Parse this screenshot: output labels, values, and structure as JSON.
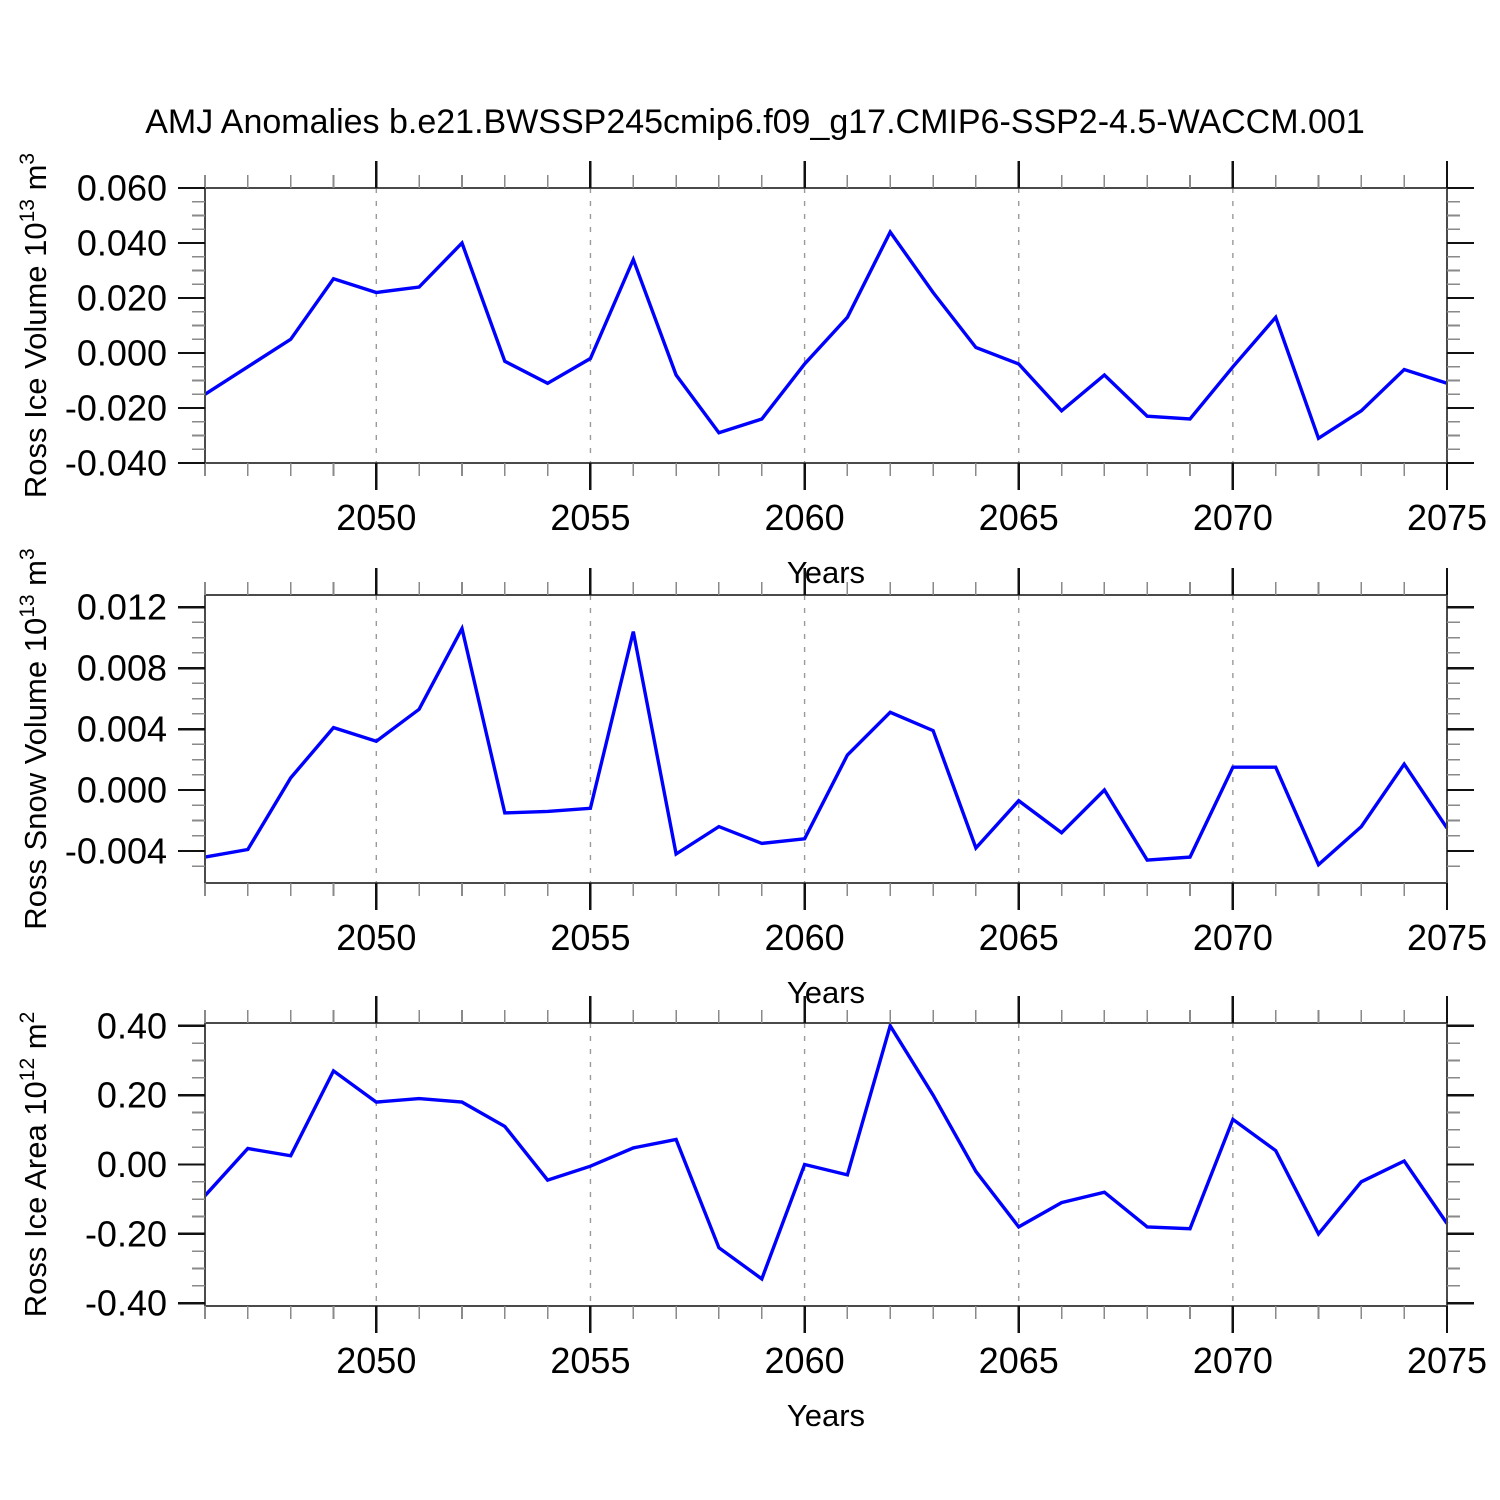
{
  "title": "AMJ Anomalies b.e21.BWSSP245cmip6.f09_g17.CMIP6-SSP2-4.5-WACCM.001",
  "line_color": "#0000ff",
  "grid_color": "#9a9a9a",
  "chart_data": [
    {
      "type": "line",
      "name": "ross-ice-volume",
      "ylabel_segments": [
        {
          "t": "Ross Ice Volume 10",
          "sup": false
        },
        {
          "t": "13",
          "sup": true
        },
        {
          "t": " m",
          "sup": false
        },
        {
          "t": "3",
          "sup": true
        }
      ],
      "xlabel": "Years",
      "x": [
        2046,
        2047,
        2048,
        2049,
        2050,
        2051,
        2052,
        2053,
        2054,
        2055,
        2056,
        2057,
        2058,
        2059,
        2060,
        2061,
        2062,
        2063,
        2064,
        2065,
        2066,
        2067,
        2068,
        2069,
        2070,
        2071,
        2072,
        2073,
        2074,
        2075
      ],
      "values": [
        -0.015,
        -0.005,
        0.005,
        0.027,
        0.022,
        0.024,
        0.04,
        -0.003,
        -0.011,
        -0.002,
        0.034,
        -0.008,
        -0.029,
        -0.024,
        -0.004,
        0.013,
        0.044,
        0.022,
        0.002,
        -0.004,
        -0.021,
        -0.008,
        -0.023,
        -0.024,
        -0.005,
        0.013,
        -0.031,
        -0.021,
        -0.006,
        -0.011
      ],
      "xlim": [
        2046,
        2075
      ],
      "ylim": [
        -0.04,
        0.06
      ],
      "yticks": [
        0.06,
        0.04,
        0.02,
        0.0,
        -0.02,
        -0.04
      ],
      "ytick_labels": [
        "0.060",
        "0.040",
        "0.020",
        "0.000",
        "-0.020",
        "-0.040"
      ],
      "ytick_minor_step": 0.005,
      "xticks": [
        2050,
        2055,
        2060,
        2065,
        2070,
        2075
      ],
      "xtick_labels": [
        "2050",
        "2055",
        "2060",
        "2065",
        "2070",
        "2075"
      ],
      "xtick_minor_step": 1,
      "grid_years": [
        2050,
        2055,
        2060,
        2065,
        2070
      ]
    },
    {
      "type": "line",
      "name": "ross-snow-volume",
      "ylabel_segments": [
        {
          "t": "Ross Snow Volume 10",
          "sup": false
        },
        {
          "t": "13",
          "sup": true
        },
        {
          "t": " m",
          "sup": false
        },
        {
          "t": "3",
          "sup": true
        }
      ],
      "xlabel": "Years",
      "x": [
        2046,
        2047,
        2048,
        2049,
        2050,
        2051,
        2052,
        2053,
        2054,
        2055,
        2056,
        2057,
        2058,
        2059,
        2060,
        2061,
        2062,
        2063,
        2064,
        2065,
        2066,
        2067,
        2068,
        2069,
        2070,
        2071,
        2072,
        2073,
        2074,
        2075
      ],
      "values": [
        -0.0044,
        -0.0039,
        0.0008,
        0.0041,
        0.0032,
        0.0053,
        0.0106,
        -0.0015,
        -0.0014,
        -0.0012,
        0.0104,
        -0.0042,
        -0.0024,
        -0.0035,
        -0.0032,
        0.0023,
        0.0051,
        0.0039,
        -0.0038,
        -0.0007,
        -0.0028,
        0.0,
        -0.0046,
        -0.0044,
        0.0015,
        0.0015,
        -0.0049,
        -0.0024,
        0.0017,
        -0.0025
      ],
      "xlim": [
        2046,
        2075
      ],
      "ylim": [
        -0.0061,
        0.0128
      ],
      "yticks": [
        0.012,
        0.008,
        0.004,
        0.0,
        -0.004
      ],
      "ytick_labels": [
        "0.012",
        "0.008",
        "0.004",
        "0.000",
        "-0.004"
      ],
      "ytick_minor_step": 0.001,
      "xticks": [
        2050,
        2055,
        2060,
        2065,
        2070,
        2075
      ],
      "xtick_labels": [
        "2050",
        "2055",
        "2060",
        "2065",
        "2070",
        "2075"
      ],
      "xtick_minor_step": 1,
      "grid_years": [
        2050,
        2055,
        2060,
        2065,
        2070
      ]
    },
    {
      "type": "line",
      "name": "ross-ice-area",
      "ylabel_segments": [
        {
          "t": "Ross Ice Area 10",
          "sup": false
        },
        {
          "t": "12",
          "sup": true
        },
        {
          "t": " m",
          "sup": false
        },
        {
          "t": "2",
          "sup": true
        }
      ],
      "xlabel": "Years",
      "x": [
        2046,
        2047,
        2048,
        2049,
        2050,
        2051,
        2052,
        2053,
        2054,
        2055,
        2056,
        2057,
        2058,
        2059,
        2060,
        2061,
        2062,
        2063,
        2064,
        2065,
        2066,
        2067,
        2068,
        2069,
        2070,
        2071,
        2072,
        2073,
        2074,
        2075
      ],
      "values": [
        -0.09,
        0.046,
        0.025,
        0.27,
        0.18,
        0.19,
        0.18,
        0.11,
        -0.045,
        -0.005,
        0.048,
        0.072,
        -0.24,
        -0.33,
        0.0,
        -0.03,
        0.4,
        0.2,
        -0.02,
        -0.18,
        -0.11,
        -0.08,
        -0.18,
        -0.185,
        0.13,
        0.04,
        -0.2,
        -0.05,
        0.01,
        -0.17
      ],
      "xlim": [
        2046,
        2075
      ],
      "ylim": [
        -0.408,
        0.408
      ],
      "yticks": [
        0.4,
        0.2,
        0.0,
        -0.2,
        -0.4
      ],
      "ytick_labels": [
        "0.40",
        "0.20",
        "0.00",
        "-0.20",
        "-0.40"
      ],
      "ytick_minor_step": 0.05,
      "xticks": [
        2050,
        2055,
        2060,
        2065,
        2070,
        2075
      ],
      "xtick_labels": [
        "2050",
        "2055",
        "2060",
        "2065",
        "2070",
        "2075"
      ],
      "xtick_minor_step": 1,
      "grid_years": [
        2050,
        2055,
        2060,
        2065,
        2070
      ]
    }
  ]
}
